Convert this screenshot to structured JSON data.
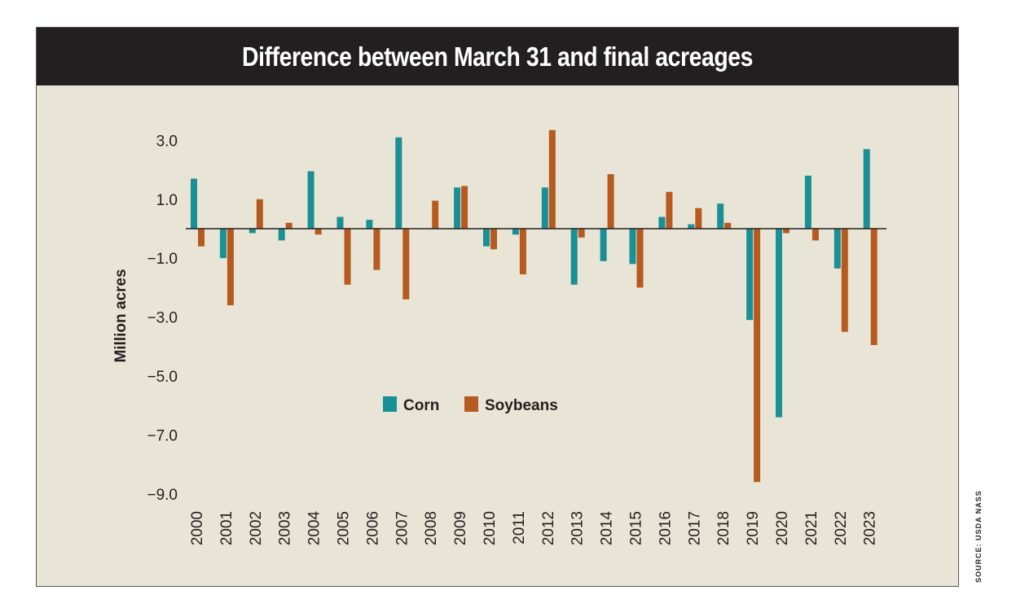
{
  "chart_data": {
    "type": "bar",
    "title": "Difference between March 31 and final acreages",
    "ylabel": "Million acres",
    "xlabel": "",
    "ylim": [
      -9.0,
      3.3
    ],
    "yticks": [
      3.0,
      1.0,
      -1.0,
      -3.0,
      -5.0,
      -7.0,
      -9.0
    ],
    "ytick_labels": [
      "3.0",
      "1.0",
      "−1.0",
      "−3.0",
      "−5.0",
      "−7.0",
      "−9.0"
    ],
    "grid": false,
    "legend_position": "center",
    "categories": [
      "2000",
      "2001",
      "2002",
      "2003",
      "2004",
      "2005",
      "2006",
      "2007",
      "2008",
      "2009",
      "2010",
      "2011",
      "2012",
      "2013",
      "2014",
      "2015",
      "2016",
      "2017",
      "2018",
      "2019",
      "2020",
      "2021",
      "2022",
      "2023"
    ],
    "series": [
      {
        "name": "Corn",
        "color": "#1a8f95",
        "values": [
          1.7,
          -1.0,
          -0.15,
          -0.4,
          1.95,
          0.4,
          0.3,
          3.1,
          0.0,
          1.4,
          -0.6,
          -0.2,
          1.4,
          -1.9,
          -1.1,
          -1.2,
          0.4,
          0.15,
          0.85,
          -3.1,
          -6.4,
          1.8,
          -1.35,
          2.7
        ]
      },
      {
        "name": "Soybeans",
        "color": "#b65a1f",
        "values": [
          -0.6,
          -2.6,
          1.0,
          0.2,
          -0.2,
          -1.9,
          -1.4,
          -2.4,
          0.95,
          1.45,
          -0.7,
          -1.55,
          3.35,
          -0.3,
          1.85,
          -2.0,
          1.25,
          0.7,
          0.2,
          -8.6,
          -0.15,
          -0.4,
          -3.5,
          -3.95
        ]
      }
    ]
  },
  "source": "SOURCE: USDA NASS"
}
